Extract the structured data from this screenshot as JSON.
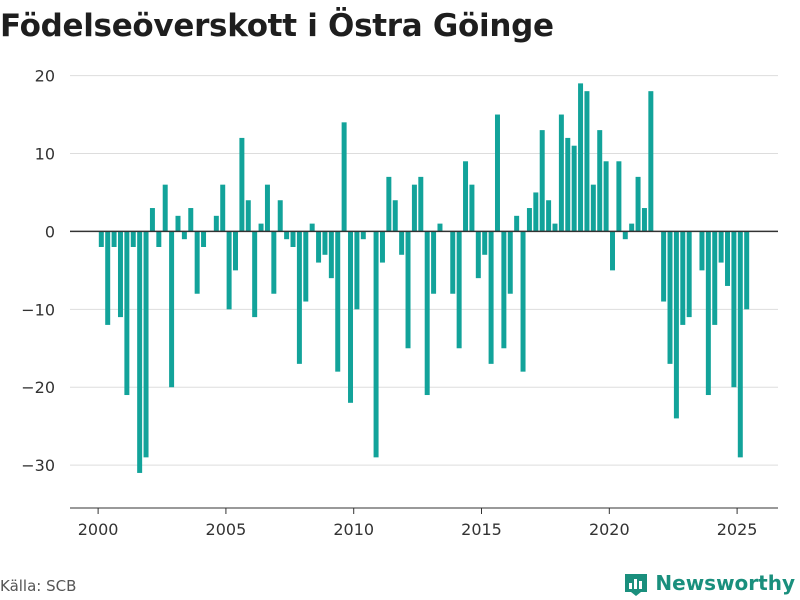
{
  "header": {
    "title": "Födelseöverskott i Östra Göinge"
  },
  "footer": {
    "source": "Källa: SCB",
    "brand": "Newsworthy"
  },
  "chart_data": {
    "type": "bar",
    "title": "Födelseöverskott i Östra Göinge",
    "xlabel": "",
    "ylabel": "",
    "xlim": [
      1998.9,
      2026.6
    ],
    "ylim": [
      -35.5,
      22
    ],
    "yticks": [
      20,
      10,
      0,
      -10,
      -20,
      -30
    ],
    "ytick_labels": [
      "20",
      "10",
      "0",
      "−10",
      "−20",
      "−30"
    ],
    "xticks": [
      2000,
      2005,
      2010,
      2015,
      2020,
      2025
    ],
    "xtick_labels": [
      "2000",
      "2005",
      "2010",
      "2015",
      "2020",
      "2025"
    ],
    "grid": true,
    "legend": "none",
    "bar_color": "#12a39a",
    "x": [
      2000.125,
      2000.375,
      2000.625,
      2000.875,
      2001.125,
      2001.375,
      2001.625,
      2001.875,
      2002.125,
      2002.375,
      2002.625,
      2002.875,
      2003.125,
      2003.375,
      2003.625,
      2003.875,
      2004.125,
      2004.375,
      2004.625,
      2004.875,
      2005.125,
      2005.375,
      2005.625,
      2005.875,
      2006.125,
      2006.375,
      2006.625,
      2006.875,
      2007.125,
      2007.375,
      2007.625,
      2007.875,
      2008.125,
      2008.375,
      2008.625,
      2008.875,
      2009.125,
      2009.375,
      2009.625,
      2009.875,
      2010.125,
      2010.375,
      2010.625,
      2010.875,
      2011.125,
      2011.375,
      2011.625,
      2011.875,
      2012.125,
      2012.375,
      2012.625,
      2012.875,
      2013.125,
      2013.375,
      2013.625,
      2013.875,
      2014.125,
      2014.375,
      2014.625,
      2014.875,
      2015.125,
      2015.375,
      2015.625,
      2015.875,
      2016.125,
      2016.375,
      2016.625,
      2016.875,
      2017.125,
      2017.375,
      2017.625,
      2017.875,
      2018.125,
      2018.375,
      2018.625,
      2018.875,
      2019.125,
      2019.375,
      2019.625,
      2019.875,
      2020.125,
      2020.375,
      2020.625,
      2020.875,
      2021.125,
      2021.375,
      2021.625,
      2021.875,
      2022.125,
      2022.375,
      2022.625,
      2022.875,
      2023.125,
      2023.375,
      2023.625,
      2023.875,
      2024.125,
      2024.375,
      2024.625,
      2024.875,
      2025.125,
      2025.375
    ],
    "values": [
      -2,
      -12,
      -2,
      -11,
      -21,
      -2,
      -31,
      -29,
      3,
      -2,
      6,
      -20,
      2,
      -1,
      3,
      -8,
      -2,
      0,
      2,
      6,
      -10,
      -5,
      12,
      4,
      -11,
      1,
      6,
      -8,
      4,
      -1,
      -2,
      -17,
      -9,
      1,
      -4,
      -3,
      -6,
      -18,
      14,
      -22,
      -10,
      -1,
      0,
      -29,
      -4,
      7,
      4,
      -3,
      -15,
      6,
      7,
      -21,
      -8,
      1,
      0,
      -8,
      -15,
      9,
      6,
      -6,
      -3,
      -17,
      15,
      -15,
      -8,
      2,
      -18,
      3,
      5,
      13,
      4,
      1,
      15,
      12,
      11,
      19,
      18,
      6,
      13,
      9,
      -5,
      9,
      -1,
      1,
      7,
      3,
      18,
      0,
      -9,
      -17,
      -24,
      -12,
      -11,
      0,
      -5,
      -21,
      -12,
      -4,
      -7,
      -20,
      -29,
      -10
    ]
  }
}
